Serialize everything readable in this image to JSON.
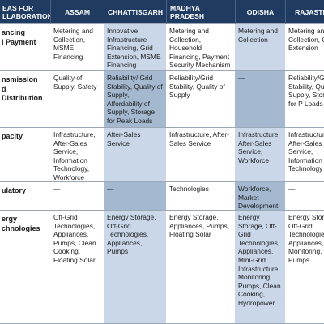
{
  "header": {
    "first": [
      "EAS FOR",
      "LLABORATION"
    ],
    "columns": [
      "ASSAM",
      "CHHATTISGARH",
      "MADHYA PRADESH",
      "ODISHA",
      "RAJASTHA"
    ]
  },
  "rows": [
    {
      "label": [
        "ancing",
        "l Payment"
      ],
      "cells": [
        "Metering and Collection, MSME Financing",
        "Innovative Infrastructure Financing, Grid Extension, MSME Financing",
        "Metering and Collection, Household Financing, Payment Security Mechanism",
        "Metering and Collection",
        "Metering and Collection, G Extension"
      ]
    },
    {
      "label": [
        "nsmission",
        "d Distribution"
      ],
      "cells": [
        "Quality of Supply, Safety",
        "Reliability/ Grid Stability, Quality of Supply, Affordability of Supply, Storage for Peak Loads",
        "Reliability/Grid Stability, Quality of Supply",
        "—",
        "Reliability/G Stability, Qua of Supply, Storage for P Loads"
      ]
    },
    {
      "label": [
        "pacity"
      ],
      "cells": [
        "Infrastructure, After-Sales Service, Information Technology, Workforce",
        "After-Sales Service",
        "Infrastructure, After-Sales Service",
        "Infrastructure, After-Sales Service, Workforce",
        "Infrastructure After-Sales Service, Information Technology"
      ]
    },
    {
      "label": [
        "ulatory"
      ],
      "cells": [
        "—",
        "—",
        "Technologies",
        "Workforce, Market Development",
        "—"
      ]
    },
    {
      "label": [
        "ergy",
        "chnologies"
      ],
      "cells": [
        "Off-Grid Technologies, Appliances, Pumps, Clean Cooking, Floating Solar",
        "Energy Storage, Off-Grid Technologies, Appliances, Pumps",
        "Energy Storage, Appliances, Pumps, Floating Solar",
        "Energy Storage, Off-Grid Technologies, Appliances, Mini-Grid Infrastructure, Monitoring, Pumps, Clean Cooking, Hydropower",
        "Energy Storag Off-Grid Technologie Appliances, Monitoring, Pumps"
      ]
    }
  ]
}
